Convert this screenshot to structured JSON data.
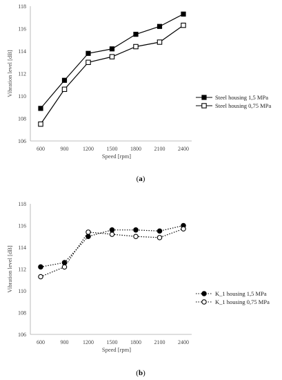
{
  "chart_data": [
    {
      "type": "line",
      "caption": "(a)",
      "caption_letter": "a",
      "xlabel": "Speed [rpm]",
      "ylabel": "Vibration level [dB]",
      "categories": [
        "600",
        "900",
        "1200",
        "1500",
        "1800",
        "2100",
        "2400"
      ],
      "ylim": [
        106,
        118
      ],
      "yticks": [
        106,
        108,
        110,
        112,
        114,
        116,
        118
      ],
      "legend_position": "right",
      "grid": false,
      "series": [
        {
          "name": "Steel housing 1,5 MPa",
          "marker": "filled-square",
          "line": "solid",
          "values": [
            108.9,
            111.4,
            113.8,
            114.2,
            115.5,
            116.2,
            117.3
          ]
        },
        {
          "name": "Steel housing 0,75 MPa",
          "marker": "open-square",
          "line": "solid",
          "values": [
            107.5,
            110.6,
            113.0,
            113.5,
            114.4,
            114.8,
            116.3
          ]
        }
      ]
    },
    {
      "type": "line",
      "caption": "(b)",
      "caption_letter": "b",
      "xlabel": "Speed [rpm]",
      "ylabel": "Vibration level [dB]",
      "categories": [
        "600",
        "900",
        "1200",
        "1500",
        "1800",
        "2100",
        "2400"
      ],
      "ylim": [
        106,
        118
      ],
      "yticks": [
        106,
        108,
        110,
        112,
        114,
        116,
        118
      ],
      "legend_position": "right",
      "grid": false,
      "series": [
        {
          "name": "K_1 housing 1,5 MPa",
          "marker": "filled-circle",
          "line": "dotted",
          "values": [
            112.2,
            112.6,
            115.0,
            115.6,
            115.6,
            115.5,
            116.0
          ]
        },
        {
          "name": "K_1 housing 0,75 MPa",
          "marker": "open-circle",
          "line": "dotted",
          "values": [
            111.3,
            112.2,
            115.4,
            115.2,
            115.0,
            114.9,
            115.7
          ]
        }
      ]
    }
  ]
}
